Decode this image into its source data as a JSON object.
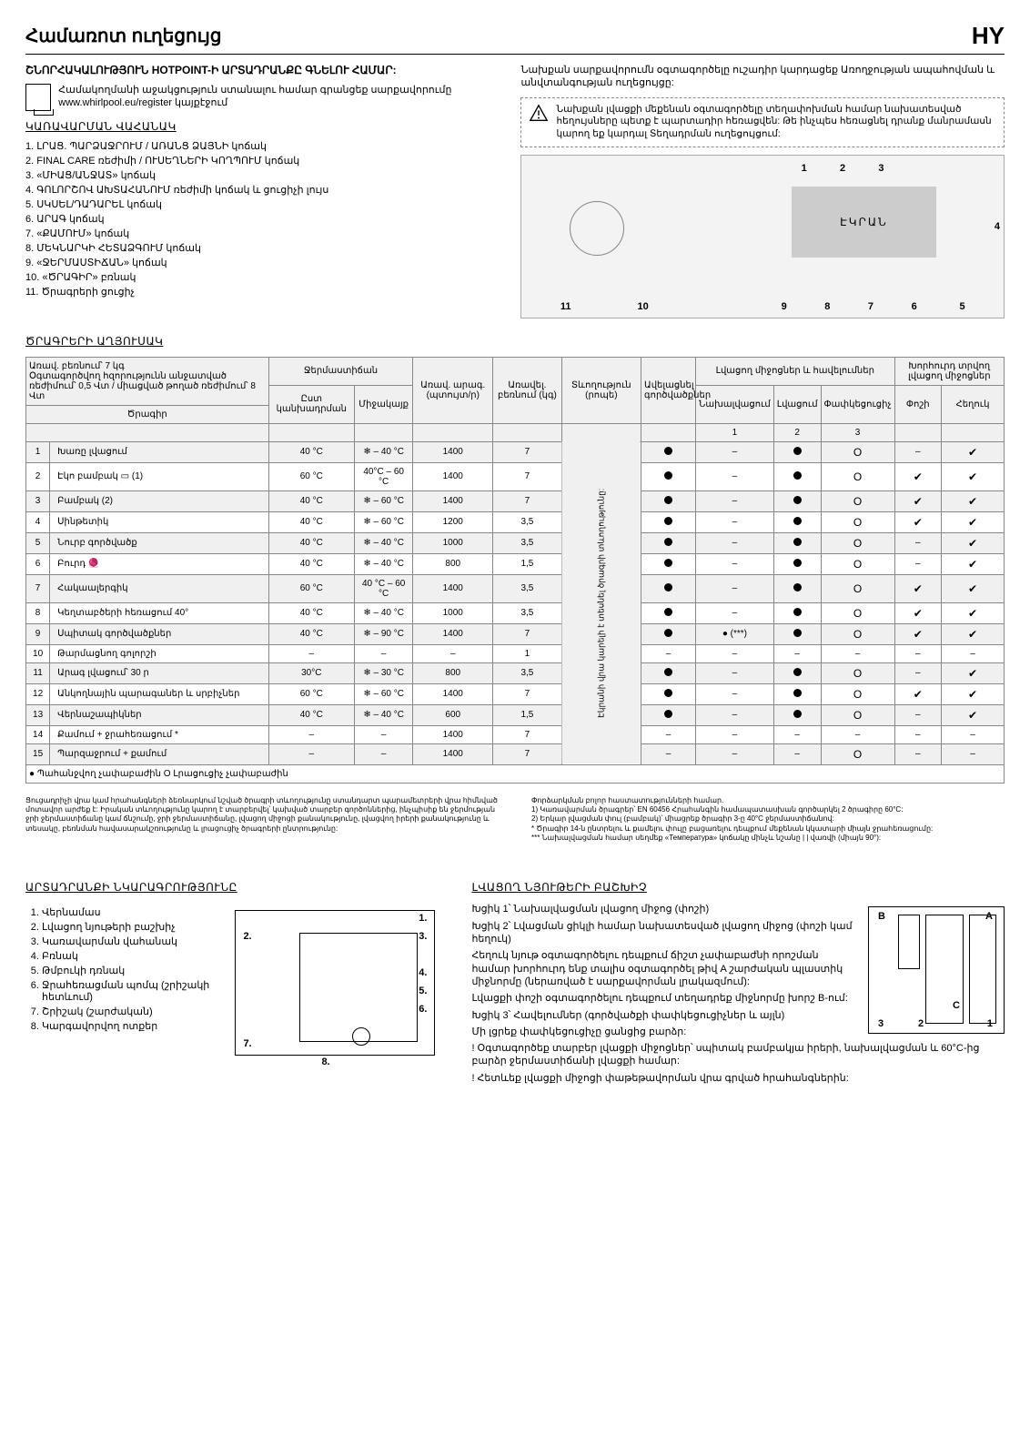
{
  "lang_code": "HY",
  "title": "Համառոտ ուղեցույց",
  "intro_head": "ՇՆՈՐՀԱԿԱԼՈՒԹՅՈՒՆ HOTPOINT-Ի ԱՐՏԱԴՐԱՆՔԸ ԳՆԵԼՈՒ ՀԱՄԱՐ:",
  "reg_text": "Համակողմանի աջակցություն ստանալու համար գրանցեք սարքավորումը www.whirlpool.eu/register կայքէջում",
  "right_note": "Նախքան սարքավորումն օգտագործելը ուշադիր կարդացեք Առողջության ապահովման և անվտանգության ուղեցույցը:",
  "warn_note": "Նախքան լվացքի մեքենան օգտագործելը տեղափոխման համար նախատեսված հեղույսները պետք է պարտադիր հեռացվեն: Թե ինչպես հեռացնել դրանք մանրամասն կարող եք կարդալ Տեղադրման ուղեցույցում:",
  "panel_head": "ԿԱՌԱՎԱՐՄԱՆ ՎԱՀԱՆԱԿ",
  "panel_items": [
    "1. ԼՐԱՑ. ՊԱՐՁԱՋՐՈՒՄ / ԱՌԱՆՑ ՁԱՅՆԻ կոճակ",
    "2. FINAL CARE ռեժիմի / ՈՒՍԵՂՆԵՐԻ ԿՈՂՊՈՒՄ կոճակ",
    "3. «ՄԻԱՑ/ԱՆՋԱՏ» կոճակ",
    "4. ԳՈԼՈՐՇՈՎ ԱԽՏԱՀԱՆՈՒՄ ռեժիմի կոճակ և ցուցիչի լույս",
    "5. ՍԿՍԵԼ/ԴԱԴԱՐԵԼ կոճակ",
    "6. ԱՐԱԳ կոճակ",
    "7. «ՔԱՄՈՒՄ» կոճակ",
    "8. ՄԵԿՆԱՐԿԻ ՀԵՏԱՁԳՈՒՄ կոճակ",
    "9. «ՋԵՐՄԱՍՏԻՃԱՆ» կոճակ",
    "10. «ԾՐԱԳԻՐ» բռնակ",
    "11. Ծրագրերի ցուցիչ"
  ],
  "display_label": "ԷԿՐԱՆ",
  "callouts": [
    "1",
    "2",
    "3",
    "4",
    "5",
    "6",
    "7",
    "8",
    "9",
    "10",
    "11"
  ],
  "prog_head": "ԾՐԱԳՐԵՐԻ ԱՂՅՈՒՍԱԿ",
  "prog_caption": "Առավ. բեռնում՝ 7 կգ\nՕգտագործվող հզորությունն անջատված ռեժիմում՝ 0,5 Վտ / միացված թողած ռեժիմում՝ 8 Վտ",
  "columns": {
    "program": "Ծրագիր",
    "temp": "Ջերմաստիճան",
    "temp_sub1": "Ըստ կանխադրման",
    "temp_sub2": "Միջակայք",
    "speed": "Առավ. արագ. (պտույտ/ր)",
    "load": "Առավել. բեռնում (կգ)",
    "duration": "Տևողություն (րոպե)",
    "wetness": "Ավելացնել գործվածքներ",
    "deterg_group": "Լվացող միջոցներ և հավելումներ",
    "deterg1": "Նախալվացում",
    "deterg2": "Լվացում",
    "deterg3": "Փափկեցուցիչ",
    "rinse_group": "Խորհուրդ տրվող լվացող միջոցներ",
    "rinse1": "Փոշի",
    "rinse2": "Հեղուկ"
  },
  "duration_rotated": "Էկրանի վրա կարելի է տեսնել ծրագրի տևողությունը:",
  "rows": [
    {
      "n": 1,
      "name": "Խառը լվացում",
      "t1": "40 °C",
      "t2": "❄ – 40 °C",
      "spd": "1400",
      "load": "7",
      "wet": true,
      "d1": "–",
      "d2": true,
      "d3": "O",
      "r1": "–",
      "r2": true
    },
    {
      "n": 2,
      "name": "Էկո բամբակ ▭ (1)",
      "t1": "60 °C",
      "t2": "40°C – 60 °C",
      "spd": "1400",
      "load": "7",
      "wet": true,
      "d1": "–",
      "d2": true,
      "d3": "O",
      "r1": true,
      "r2": true
    },
    {
      "n": 3,
      "name": "Բամբակ (2)",
      "t1": "40 °C",
      "t2": "❄ – 60 °C",
      "spd": "1400",
      "load": "7",
      "wet": true,
      "d1": "–",
      "d2": true,
      "d3": "O",
      "r1": true,
      "r2": true
    },
    {
      "n": 4,
      "name": "Սինթետիկ",
      "t1": "40 °C",
      "t2": "❄ – 60 °C",
      "spd": "1200",
      "load": "3,5",
      "wet": true,
      "d1": "–",
      "d2": true,
      "d3": "O",
      "r1": true,
      "r2": true
    },
    {
      "n": 5,
      "name": "Նուրբ գործվածք",
      "t1": "40 °C",
      "t2": "❄ – 40 °C",
      "spd": "1000",
      "load": "3,5",
      "wet": true,
      "d1": "–",
      "d2": true,
      "d3": "O",
      "r1": "–",
      "r2": true
    },
    {
      "n": 6,
      "name": "Բուրդ 🧶",
      "t1": "40 °C",
      "t2": "❄ – 40 °C",
      "spd": "800",
      "load": "1,5",
      "wet": true,
      "d1": "–",
      "d2": true,
      "d3": "O",
      "r1": "–",
      "r2": true
    },
    {
      "n": 7,
      "name": "Հակաալերգիկ",
      "t1": "60 °C",
      "t2": "40 °C – 60 °C",
      "spd": "1400",
      "load": "3,5",
      "wet": true,
      "d1": "–",
      "d2": true,
      "d3": "O",
      "r1": true,
      "r2": true
    },
    {
      "n": 8,
      "name": "Կեղտաբծերի հեռացում 40°",
      "t1": "40 °C",
      "t2": "❄ – 40 °C",
      "spd": "1000",
      "load": "3,5",
      "wet": true,
      "d1": "–",
      "d2": true,
      "d3": "O",
      "r1": true,
      "r2": true
    },
    {
      "n": 9,
      "name": "Սպիտակ գործվածքներ",
      "t1": "40 °C",
      "t2": "❄ – 90 °C",
      "spd": "1400",
      "load": "7",
      "wet": true,
      "d1": "● (***)",
      "d2": true,
      "d3": "O",
      "r1": true,
      "r2": true
    },
    {
      "n": 10,
      "name": "Թարմացնող գոլորշի",
      "t1": "–",
      "t2": "–",
      "spd": "–",
      "load": "1",
      "wet": "–",
      "d1": "–",
      "d2": "–",
      "d3": "–",
      "r1": "–",
      "r2": "–"
    },
    {
      "n": 11,
      "name": "Արագ լվացում՝ 30 ր",
      "t1": "30°C",
      "t2": "❄ – 30 °C",
      "spd": "800",
      "load": "3,5",
      "wet": true,
      "d1": "–",
      "d2": true,
      "d3": "O",
      "r1": "–",
      "r2": true
    },
    {
      "n": 12,
      "name": "Անկողնային պարագաներ և սրբիչներ",
      "t1": "60 °C",
      "t2": "❄ – 60 °C",
      "spd": "1400",
      "load": "7",
      "wet": true,
      "d1": "–",
      "d2": true,
      "d3": "O",
      "r1": true,
      "r2": true
    },
    {
      "n": 13,
      "name": "Վերնաշապիկներ",
      "t1": "40 °C",
      "t2": "❄ – 40 °C",
      "spd": "600",
      "load": "1,5",
      "wet": true,
      "d1": "–",
      "d2": true,
      "d3": "O",
      "r1": "–",
      "r2": true
    },
    {
      "n": 14,
      "name": "Քամում + ջրահեռացում *",
      "t1": "–",
      "t2": "–",
      "spd": "1400",
      "load": "7",
      "wet": "–",
      "d1": "–",
      "d2": "–",
      "d3": "–",
      "r1": "–",
      "r2": "–"
    },
    {
      "n": 15,
      "name": "Պարզաջրում + քամում",
      "t1": "–",
      "t2": "–",
      "spd": "1400",
      "load": "7",
      "wet": "–",
      "d1": "–",
      "d2": "–",
      "d3": "O",
      "r1": "–",
      "r2": "–"
    }
  ],
  "legend": "● Պահանջվող չափաբաժին   O Լրացուցիչ չափաբաժին",
  "footnote_left": "Ցուցադրիչի վրա կամ հրահանգների ձեռնարկում նշված ծրագրի տևողությունը ստանդարտ պարամետրերի վրա հիմնված մոտավոր արժեք է: Իրական տևողությունը կարող է տարբերվել՝ կախված տարբեր գործոններից, ինչպիսիք են ջերմության ջրի ջերմաստիճանը կամ ճնշումը, ջրի ջերմաստիճանը, լվացող միջոցի քանակությունը, լվացվող իրերի քանակությունը և տեսակը, բեռնման հավասարակշռությունը և լրացուցիչ ծրագրերի ընտրությունը:",
  "footnote_right": "Փորձարկման բոլոր հաստատությունների համար.\n1) Կառավարման ծրագրեր՝ EN 60456 Հրահանգին համապատասխան գործարկել 2 ծրագիրը 60°C:\n2) Երկար լվացման փուլ (բամբակ)՝ միացրեք ծրագիր 3-ը 40°C ջերմաստիճանով:\n* Ծրագիր 14-ն ընտրելու և քամելու փուլը բացառելու դեպքում մեքենան կկատարի միայն ջրահեռացումը:\n*** Նախալվացման համար սեղմեք «Температура» կոճակը մինչև նշանը | | վառվի (միայն 90°):",
  "desc_head": "ԱՐՏԱԴՐԱՆՔԻ ՆԿԱՐԱԳՐՈՒԹՅՈՒՆԸ",
  "desc_items": [
    "1. Վերնամաս",
    "2. Լվացող նյութերի բաշխիչ",
    "3. Կառավարման վահանակ",
    "4. Բռնակ",
    "5. Թմբուկի դռնակ",
    "6. Ջրահեռացման պոմպ (շրիշակի հետևում)",
    "7. Շրիշակ (շարժական)",
    "8. Կարգավորվող ոտքեր"
  ],
  "drawer_labels": [
    "1.",
    "2.",
    "3.",
    "4.",
    "5.",
    "6.",
    "7.",
    "8."
  ],
  "deterg_head": "ԼՎԱՑՈՂ ՆՅՈՒԹԵՐԻ ԲԱՇԽԻՉ",
  "deterg_body": [
    "Խցիկ 1՝ Նախալվացման լվացող միջոց (փոշի)",
    "Խցիկ 2՝ Լվացման ցիկլի համար նախատեսված լվացող միջոց (փոշի կամ հեղուկ)",
    "Հեղուկ նյութ օգտագործելու դեպքում ճիշտ չափաբաժնի որոշման համար խորհուրդ ենք տալիս օգտագործել թիվ A շարժական պլաստիկ միջնորմը (ներառված է սարքավորման լրակազմում):",
    "Լվացքի փոշի օգտագործելու դեպքում տեղադրեք միջնորմը խորշ B-ում:",
    "Խցիկ 3՝ Հավելումներ (գործվածքի փափկեցուցիչներ և այլն)",
    "Մի լցրեք փափկեցուցիչը ցանցից բարձր:",
    "! Օգտագործեք տարբեր լվացքի միջոցներ՝ սպիտակ բամբակյա իրերի, նախալվացման և 60°C-ից բարձր ջերմաստիճանի լվացքի համար:",
    "! Հետևեք լվացքի միջոցի փաթեթավորման վրա գրված հրահանգներին:"
  ],
  "deterg_slot_labels": [
    "A",
    "B",
    "C",
    "3",
    "2",
    "1"
  ],
  "colors": {
    "bg": "#ffffff",
    "line": "#000000",
    "zebra": "#f0f0f0",
    "panel": "#f3f3f3",
    "border": "#888888"
  }
}
